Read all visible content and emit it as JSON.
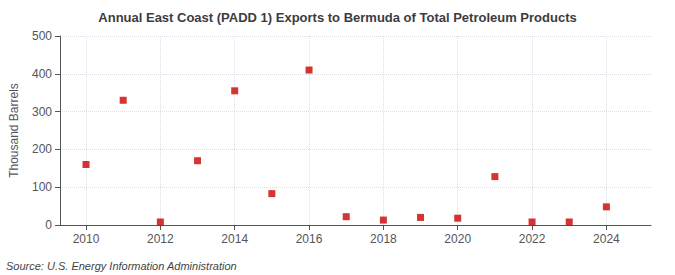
{
  "chart_data": {
    "type": "scatter",
    "title": "Annual East Coast (PADD 1) Exports to Bermuda of Total Petroleum Products",
    "ylabel": "Thousand Barrels",
    "annotations": [
      "Source: U.S. Energy Information Administration"
    ],
    "x": [
      2010,
      2011,
      2012,
      2013,
      2014,
      2015,
      2016,
      2017,
      2018,
      2019,
      2020,
      2021,
      2022,
      2023,
      2024
    ],
    "values": [
      160,
      330,
      8,
      170,
      355,
      83,
      410,
      22,
      13,
      20,
      18,
      128,
      8,
      8,
      48
    ],
    "color": "#cc0000",
    "marker": "square",
    "grid": true,
    "xlim": [
      2009.3,
      2025.2
    ],
    "xticks": [
      2010,
      2012,
      2014,
      2016,
      2018,
      2020,
      2022,
      2024
    ],
    "ylim": [
      0,
      500
    ],
    "yticks": [
      0,
      100,
      200,
      300,
      400,
      500
    ]
  }
}
